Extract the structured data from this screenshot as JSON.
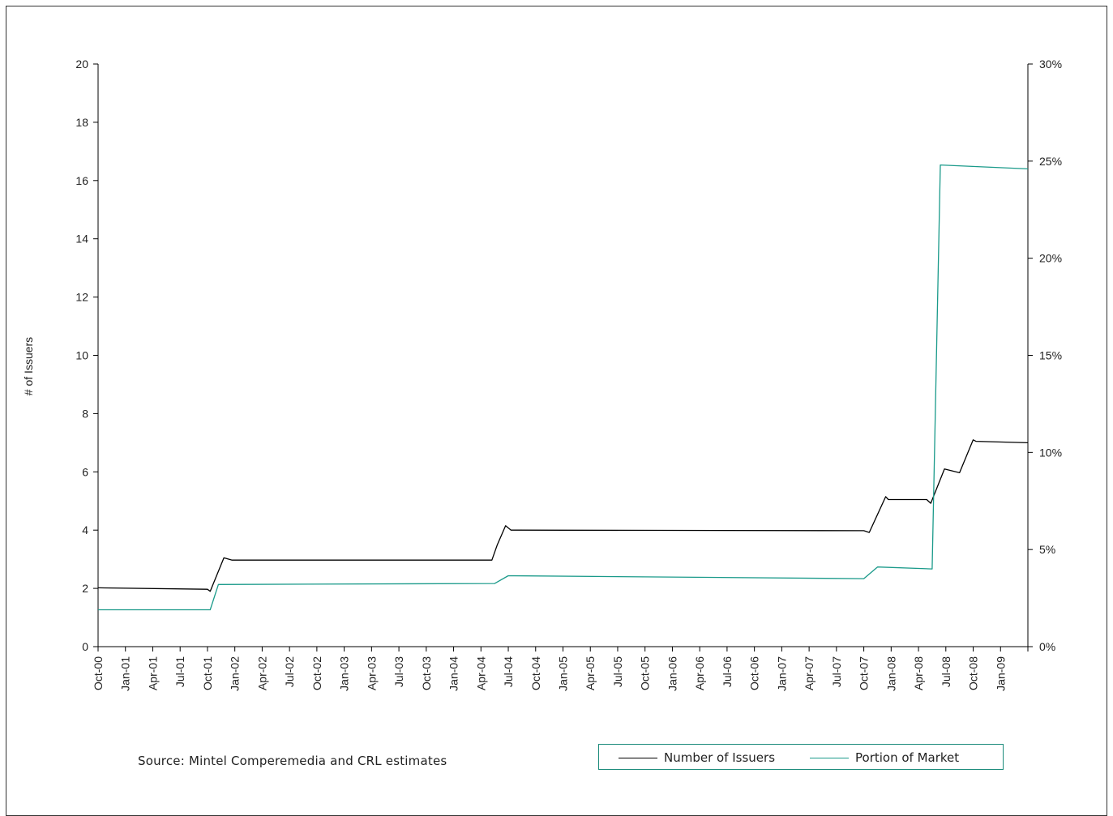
{
  "chart_data": {
    "type": "line",
    "title": "",
    "ylabel": "# of Issuers",
    "y2label": "",
    "ylim": [
      0,
      20
    ],
    "y2lim": [
      0,
      30
    ],
    "yticks": [
      "0",
      "2",
      "4",
      "6",
      "8",
      "10",
      "12",
      "14",
      "16",
      "18",
      "20"
    ],
    "y2ticks": [
      "0%",
      "5%",
      "10%",
      "15%",
      "20%",
      "25%",
      "30%"
    ],
    "x_categories": [
      "Oct-00",
      "Jan-01",
      "Apr-01",
      "Jul-01",
      "Oct-01",
      "Jan-02",
      "Apr-02",
      "Jul-02",
      "Oct-02",
      "Jan-03",
      "Apr-03",
      "Jul-03",
      "Oct-03",
      "Jan-04",
      "Apr-04",
      "Jul-04",
      "Oct-04",
      "Jan-05",
      "Apr-05",
      "Jul-05",
      "Oct-05",
      "Jan-06",
      "Apr-06",
      "Jul-06",
      "Oct-06",
      "Jan-07",
      "Apr-07",
      "Jul-07",
      "Oct-07",
      "Jan-08",
      "Apr-08",
      "Jul-08",
      "Oct-08",
      "Jan-09"
    ],
    "x_range_quarters": [
      0,
      34
    ],
    "series": [
      {
        "name": "Number of Issuers",
        "axis": "left",
        "color": "#000000",
        "points": [
          [
            0,
            2.02
          ],
          [
            4.0,
            1.97
          ],
          [
            4.1,
            1.9
          ],
          [
            4.6,
            3.05
          ],
          [
            4.9,
            2.97
          ],
          [
            14.4,
            2.97
          ],
          [
            14.6,
            3.5
          ],
          [
            14.9,
            4.15
          ],
          [
            15.1,
            4.0
          ],
          [
            28.0,
            3.98
          ],
          [
            28.2,
            3.92
          ],
          [
            28.8,
            5.15
          ],
          [
            28.9,
            5.05
          ],
          [
            30.3,
            5.05
          ],
          [
            30.45,
            4.92
          ],
          [
            30.95,
            6.1
          ],
          [
            31.5,
            5.97
          ],
          [
            32.0,
            7.1
          ],
          [
            32.1,
            7.05
          ],
          [
            34,
            7.0
          ]
        ]
      },
      {
        "name": "Portion of Market",
        "axis": "right",
        "color": "#1a9a8a",
        "points": [
          [
            0,
            1.9
          ],
          [
            4.1,
            1.9
          ],
          [
            4.4,
            3.2
          ],
          [
            14.5,
            3.25
          ],
          [
            15.0,
            3.65
          ],
          [
            28.0,
            3.5
          ],
          [
            28.5,
            4.1
          ],
          [
            30.5,
            4.0
          ],
          [
            30.8,
            24.8
          ],
          [
            34,
            24.6
          ]
        ]
      }
    ],
    "grid": false,
    "legend_position": "bottom-right",
    "source": "Source: Mintel Comperemedia and CRL estimates"
  }
}
